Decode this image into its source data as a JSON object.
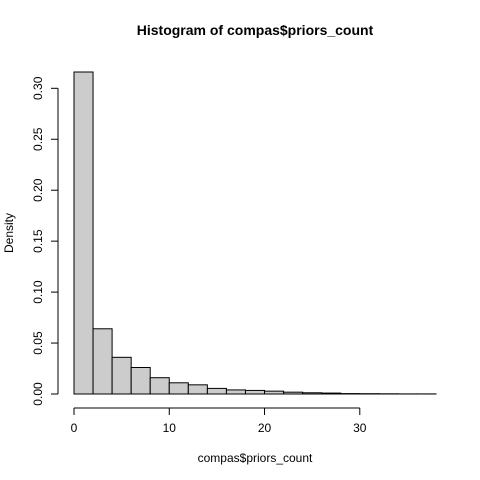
{
  "chart_data": {
    "type": "bar",
    "title": "Histogram of compas$priors_count",
    "xlabel": "compas$priors_count",
    "ylabel": "Density",
    "bins": [
      {
        "x0": 0,
        "x1": 2,
        "density": 0.316
      },
      {
        "x0": 2,
        "x1": 4,
        "density": 0.064
      },
      {
        "x0": 4,
        "x1": 6,
        "density": 0.036
      },
      {
        "x0": 6,
        "x1": 8,
        "density": 0.026
      },
      {
        "x0": 8,
        "x1": 10,
        "density": 0.016
      },
      {
        "x0": 10,
        "x1": 12,
        "density": 0.011
      },
      {
        "x0": 12,
        "x1": 14,
        "density": 0.009
      },
      {
        "x0": 14,
        "x1": 16,
        "density": 0.0055
      },
      {
        "x0": 16,
        "x1": 18,
        "density": 0.004
      },
      {
        "x0": 18,
        "x1": 20,
        "density": 0.0035
      },
      {
        "x0": 20,
        "x1": 22,
        "density": 0.0028
      },
      {
        "x0": 22,
        "x1": 24,
        "density": 0.0018
      },
      {
        "x0": 24,
        "x1": 26,
        "density": 0.0012
      },
      {
        "x0": 26,
        "x1": 28,
        "density": 0.0009
      },
      {
        "x0": 28,
        "x1": 30,
        "density": 0.0004
      },
      {
        "x0": 30,
        "x1": 32,
        "density": 0.0003
      },
      {
        "x0": 32,
        "x1": 34,
        "density": 0.0002
      },
      {
        "x0": 34,
        "x1": 36,
        "density": 0.0001
      },
      {
        "x0": 36,
        "x1": 38,
        "density": 0.0001
      }
    ],
    "xlim": [
      0,
      38
    ],
    "ylim": [
      0,
      0.316
    ],
    "xticks": [
      0,
      10,
      20,
      30
    ],
    "xtick_labels": [
      "0",
      "10",
      "20",
      "30"
    ],
    "yticks": [
      0,
      0.05,
      0.1,
      0.15,
      0.2,
      0.25,
      0.3
    ],
    "ytick_labels": [
      "0.00",
      "0.05",
      "0.10",
      "0.15",
      "0.20",
      "0.25",
      "0.30"
    ],
    "bar_fill": "#cccccc",
    "bar_stroke": "#000000",
    "grid": false
  }
}
